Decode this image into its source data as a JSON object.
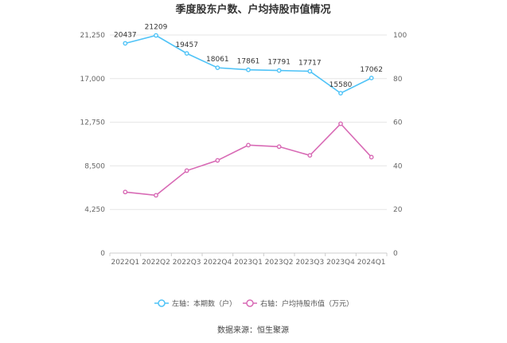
{
  "chart_data": {
    "type": "line",
    "title": "季度股东户数、户均持股市值情况",
    "categories": [
      "2022Q1",
      "2022Q2",
      "2022Q3",
      "2022Q4",
      "2023Q1",
      "2023Q2",
      "2023Q3",
      "2023Q4",
      "2024Q1"
    ],
    "left_axis": {
      "min": 0,
      "max": 21250,
      "ticks": [
        "0",
        "4,250",
        "8,500",
        "12,750",
        "17,000",
        "21,250"
      ]
    },
    "right_axis": {
      "min": 0,
      "max": 100,
      "ticks": [
        "0",
        "20",
        "40",
        "60",
        "80",
        "100"
      ]
    },
    "series": [
      {
        "name": "左轴：本期数（户）",
        "axis": "left",
        "color": "#4fc3f7",
        "values": [
          20437,
          21209,
          19457,
          18061,
          17861,
          17791,
          17717,
          15580,
          17062
        ],
        "labels": [
          "20437",
          "21209",
          "19457",
          "18061",
          "17861",
          "17791",
          "17717",
          "15580",
          "17062"
        ]
      },
      {
        "name": "右轴：户均持股市值（万元）",
        "axis": "right",
        "color": "#d86ab5",
        "values": [
          28.0,
          26.5,
          37.8,
          42.5,
          49.5,
          48.8,
          44.8,
          59.3,
          44.0
        ]
      }
    ],
    "grid": true,
    "legend_position": "bottom"
  },
  "source_text": "数据来源：恒生聚源"
}
